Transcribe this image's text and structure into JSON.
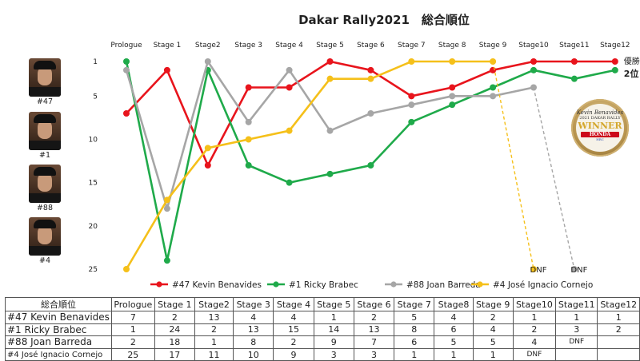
{
  "chart_data": {
    "type": "line",
    "title": "Dakar Rally2021　総合順位",
    "categories": [
      "Prologue",
      "Stage 1",
      "Stage2",
      "Stage 3",
      "Stage 4",
      "Stage 5",
      "Stage 6",
      "Stage 7",
      "Stage 8",
      "Stage 9",
      "Stage10",
      "Stage11",
      "Stage12"
    ],
    "y_ticks": [
      1,
      5,
      10,
      15,
      20,
      25
    ],
    "ylim": [
      1,
      25
    ],
    "y_inverted": true,
    "legend_position": "bottom",
    "series": [
      {
        "name": "#47 Kevin Benavides",
        "color": "#e8141c",
        "values": [
          7,
          2,
          13,
          4,
          4,
          1,
          2,
          5,
          4,
          2,
          1,
          1,
          1
        ]
      },
      {
        "name": "#1 Ricky Brabec",
        "color": "#1faa4a",
        "values": [
          1,
          24,
          2,
          13,
          15,
          14,
          13,
          8,
          6,
          4,
          2,
          3,
          2
        ]
      },
      {
        "name": "#88 Joan Barreda",
        "color": "#a6a6a6",
        "values": [
          2,
          18,
          1,
          8,
          2,
          9,
          7,
          6,
          5,
          5,
          4,
          null,
          null
        ]
      },
      {
        "name": "#4 José Ignacio Cornejo",
        "color": "#f5c01a",
        "values": [
          25,
          17,
          11,
          10,
          9,
          3,
          3,
          1,
          1,
          1,
          null,
          null,
          null
        ]
      }
    ],
    "dnf_label": "DNF",
    "end_labels": [
      "優勝",
      "2位"
    ]
  },
  "riders": [
    "#47",
    "#1",
    "#88",
    "#4"
  ],
  "badge": {
    "line1": "Kevin Benavides",
    "line2": "2021 DAKAR RALLY",
    "line3": "WINNER",
    "line4": "HONDA",
    "line5": "HRC"
  },
  "table": {
    "header_label": "総合順位",
    "columns": [
      "Prologue",
      "Stage 1",
      "Stage2",
      "Stage 3",
      "Stage 4",
      "Stage 5",
      "Stage 6",
      "Stage 7",
      "Stage8",
      "Stage 9",
      "Stage10",
      "Stage11",
      "Stage12"
    ],
    "rows": [
      {
        "name": "#47 Kevin Benavides",
        "cells": [
          "7",
          "2",
          "13",
          "4",
          "4",
          "1",
          "2",
          "5",
          "4",
          "2",
          "1",
          "1",
          "1"
        ]
      },
      {
        "name": "#1 Ricky Brabec",
        "cells": [
          "1",
          "24",
          "2",
          "13",
          "15",
          "14",
          "13",
          "8",
          "6",
          "4",
          "2",
          "3",
          "2"
        ]
      },
      {
        "name": "#88 Joan Barreda",
        "cells": [
          "2",
          "18",
          "1",
          "8",
          "2",
          "9",
          "7",
          "6",
          "5",
          "5",
          "4",
          "DNF",
          ""
        ]
      },
      {
        "name": "#4 José Ignacio Cornejo",
        "cells": [
          "25",
          "17",
          "11",
          "10",
          "9",
          "3",
          "3",
          "1",
          "1",
          "1",
          "DNF",
          "",
          ""
        ]
      }
    ]
  }
}
